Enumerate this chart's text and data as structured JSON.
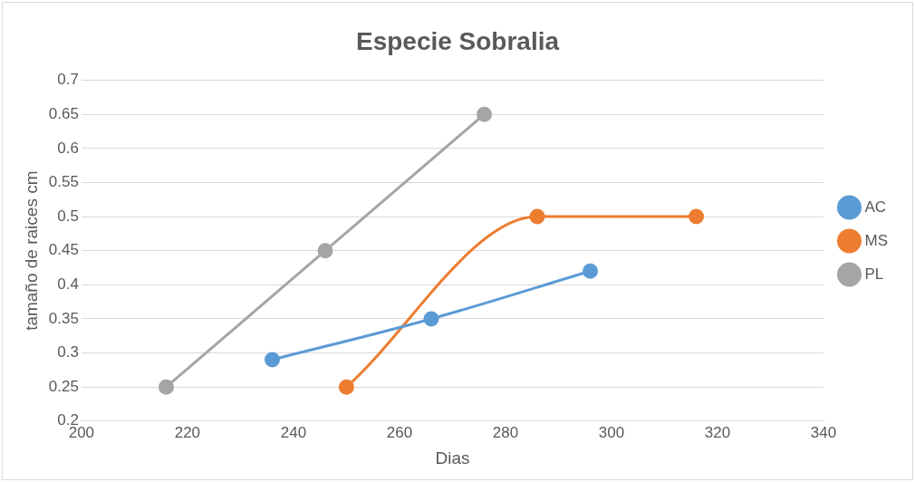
{
  "chart_data": {
    "type": "line",
    "title": "Especie Sobralia",
    "xlabel": "Dias",
    "ylabel": "tamaño de raices cm",
    "series": [
      {
        "name": "AC",
        "color": "#5b9bd5",
        "x": [
          236,
          266,
          296
        ],
        "values": [
          0.29,
          0.35,
          0.42
        ]
      },
      {
        "name": "MS",
        "color": "#ed7d31",
        "x": [
          250,
          286,
          316
        ],
        "values": [
          0.25,
          0.5,
          0.5
        ]
      },
      {
        "name": "PL",
        "color": "#a5a5a5",
        "x": [
          216,
          246,
          276
        ],
        "values": [
          0.25,
          0.45,
          0.65
        ]
      }
    ],
    "xlim": [
      200,
      340
    ],
    "xticks": [
      200,
      220,
      240,
      260,
      280,
      300,
      320,
      340
    ],
    "ylim": [
      0.2,
      0.7
    ],
    "yticks": [
      0.2,
      0.25,
      0.3,
      0.35,
      0.4,
      0.45,
      0.5,
      0.55,
      0.6,
      0.65,
      0.7
    ],
    "grid": "y",
    "legend": "right",
    "marker": "circle",
    "line_style": "solid"
  }
}
